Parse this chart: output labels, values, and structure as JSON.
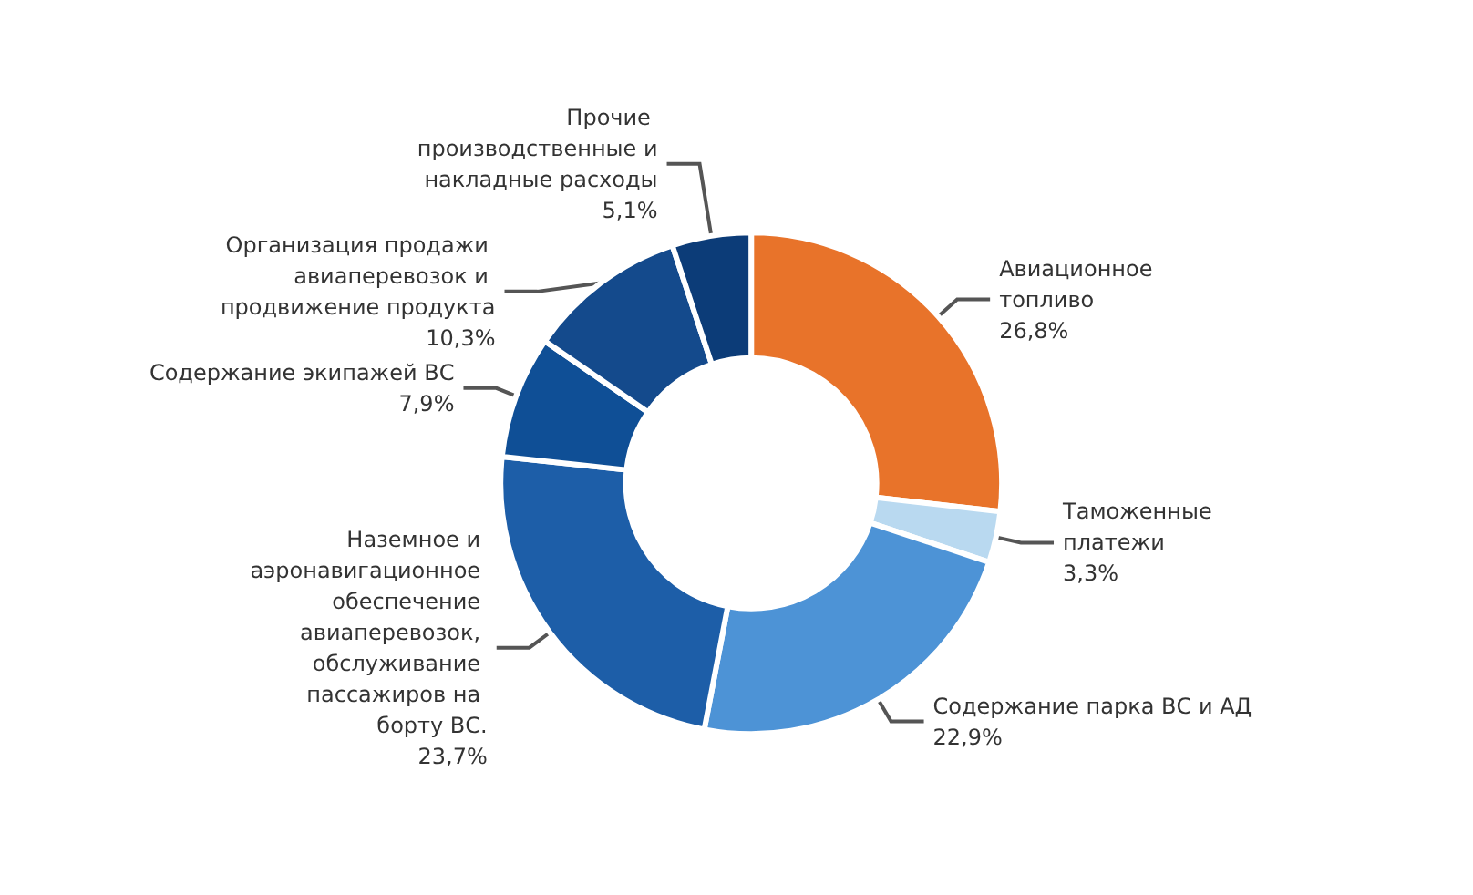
{
  "chart_data": {
    "type": "donut",
    "categories": [
      "Авиационное топливо",
      "Таможенные платежи",
      "Содержание парка ВС и АД",
      "Наземное и аэронавигационное обеспечение авиаперевозок, обслуживание пассажиров на борту ВС.",
      "Содержание экипажей ВС",
      "Организация продажи авиаперевозок и продвижение продукта",
      "Прочие производственные и накладные расходы"
    ],
    "values": [
      26.8,
      3.3,
      22.9,
      23.7,
      7.9,
      10.3,
      5.1
    ],
    "value_labels": [
      "26,8%",
      "3,3%",
      "22,9%",
      "23,7%",
      "7,9%",
      "10,3%",
      "5,1%"
    ],
    "colors": [
      "#e8732a",
      "#b9d9f0",
      "#4d93d6",
      "#1d5ea8",
      "#0f4f96",
      "#144a8c",
      "#0c3c78"
    ],
    "legend": false
  }
}
